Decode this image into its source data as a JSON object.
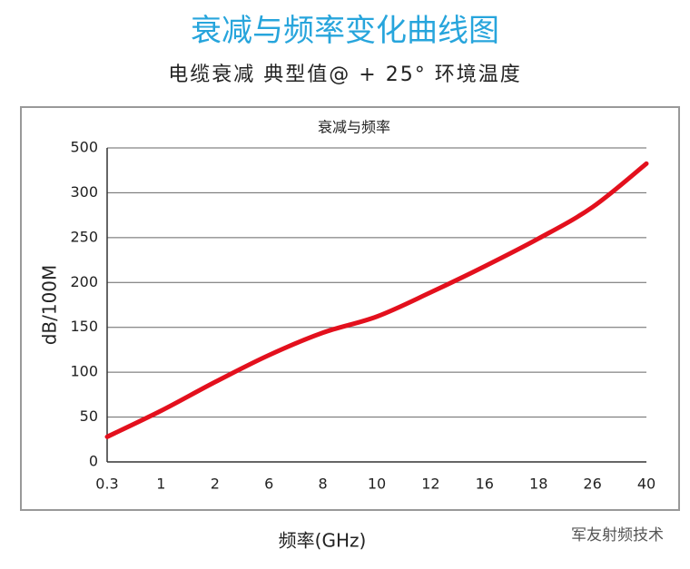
{
  "chart_data": {
    "type": "line",
    "title": "衰减与频率变化曲线图",
    "subtitle": "电缆衰减 典型值@ + 25° 环境温度",
    "plot_title": "衰减与频率",
    "y_label": "dB/100M",
    "x_label": "频率(GHz)",
    "watermark": "军友射频技术",
    "categories": [
      "0.3",
      "1",
      "2",
      "6",
      "8",
      "10",
      "12",
      "16",
      "18",
      "26",
      "40"
    ],
    "series": [
      {
        "name": "衰减",
        "color": "#e3101d",
        "values": [
          28,
          57,
          89,
          119,
          144,
          162,
          189,
          218,
          249,
          284,
          430
        ]
      }
    ],
    "ylim": [
      0,
      500
    ],
    "yticks": [
      0,
      50,
      100,
      150,
      200,
      250,
      300,
      500
    ],
    "grid": true
  }
}
